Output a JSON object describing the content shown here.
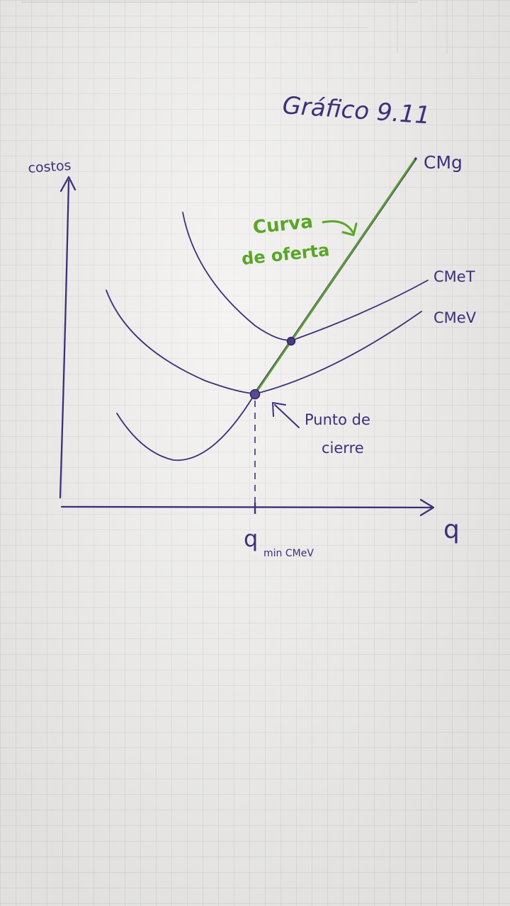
{
  "title": "Gráfico 9.11",
  "labels": {
    "y_axis": "costos",
    "x_axis": "q",
    "q_min": "q",
    "q_min_sub": "min CMeV"
  },
  "curves": {
    "cmg": "CMg",
    "cmet": "CMeT",
    "cmev": "CMeV"
  },
  "annotations": {
    "supply_line1": "Curva",
    "supply_line2": "de oferta",
    "shutdown_line1": "Punto de",
    "shutdown_line2": "cierre"
  },
  "colors": {
    "ink": "#3f2f7a",
    "supply": "#5aa626"
  }
}
